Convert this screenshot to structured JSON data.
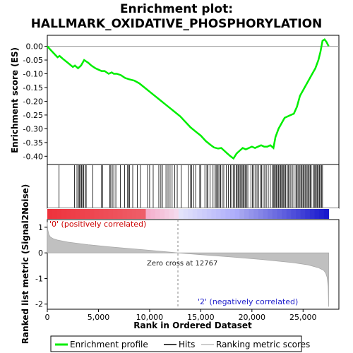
{
  "chart_data": {
    "type": "line",
    "title_line1": "Enrichment plot:",
    "title_line2": "HALLMARK_OXIDATIVE_PHOSPHORYLATION",
    "top_panel": {
      "ylabel": "Enrichment score (ES)",
      "ylim": [
        -0.43,
        0.04
      ],
      "yticks": [
        "0.00",
        "-0.05",
        "-0.10",
        "-0.15",
        "-0.20",
        "-0.25",
        "-0.30",
        "-0.35",
        "-0.40"
      ],
      "ytick_values": [
        0.0,
        -0.05,
        -0.1,
        -0.15,
        -0.2,
        -0.25,
        -0.3,
        -0.35,
        -0.4
      ],
      "line_color": "#00ee00",
      "series": [
        {
          "x": [
            0,
            500,
            1000,
            1200,
            1500,
            2000,
            2500,
            2700,
            3000,
            3300,
            3600,
            3800,
            4000,
            4300,
            4700,
            5000,
            5300,
            5600,
            6000,
            6300,
            6500,
            6800,
            7200,
            7600,
            8000,
            8500,
            9000,
            9500,
            10000,
            10500,
            11000,
            11500,
            12000,
            12500,
            13000,
            13500,
            14000,
            14500,
            15000,
            15500,
            16000,
            16300,
            16700,
            17000,
            17300,
            17600,
            17900,
            18200,
            18500,
            18800,
            19100,
            19400,
            19700,
            20000,
            20300,
            20600,
            20900,
            21200,
            21500,
            21800,
            22100,
            22300,
            22600,
            22900,
            23200,
            23500,
            23800,
            24100,
            24400,
            24700,
            25000,
            25300,
            25600,
            25900,
            26200,
            26500,
            26700,
            26900,
            27100,
            27300,
            27500
          ],
          "y": [
            0.0,
            -0.02,
            -0.04,
            -0.035,
            -0.045,
            -0.06,
            -0.075,
            -0.07,
            -0.08,
            -0.07,
            -0.05,
            -0.055,
            -0.06,
            -0.07,
            -0.08,
            -0.085,
            -0.09,
            -0.09,
            -0.1,
            -0.095,
            -0.1,
            -0.1,
            -0.105,
            -0.115,
            -0.12,
            -0.125,
            -0.135,
            -0.15,
            -0.165,
            -0.18,
            -0.195,
            -0.21,
            -0.225,
            -0.24,
            -0.255,
            -0.275,
            -0.295,
            -0.31,
            -0.325,
            -0.345,
            -0.36,
            -0.368,
            -0.372,
            -0.37,
            -0.38,
            -0.39,
            -0.4,
            -0.408,
            -0.39,
            -0.38,
            -0.37,
            -0.375,
            -0.37,
            -0.365,
            -0.37,
            -0.365,
            -0.36,
            -0.365,
            -0.365,
            -0.36,
            -0.37,
            -0.33,
            -0.3,
            -0.28,
            -0.26,
            -0.255,
            -0.25,
            -0.245,
            -0.22,
            -0.18,
            -0.16,
            -0.14,
            -0.12,
            -0.1,
            -0.08,
            -0.05,
            -0.02,
            0.02,
            0.025,
            0.015,
            0.0
          ]
        }
      ]
    },
    "hits": [
      1150,
      2650,
      2900,
      3050,
      3150,
      3250,
      3350,
      3450,
      3550,
      3700,
      3800,
      4450,
      5300,
      5400,
      6100,
      6200,
      6350,
      6500,
      6700,
      7150,
      7550,
      7850,
      7950,
      8050,
      8350,
      8800,
      9100,
      9800,
      10000,
      10350,
      10900,
      11100,
      11250,
      11600,
      11800,
      12000,
      12200,
      12450,
      12700,
      13100,
      13800,
      14000,
      14100,
      14300,
      14500,
      14900,
      15000,
      15400,
      15600,
      15700,
      15900,
      16200,
      16400,
      16500,
      16600,
      16700,
      16850,
      16950,
      17100,
      17250,
      17500,
      17700,
      17900,
      18050,
      18200,
      18300,
      18450,
      18550,
      18650,
      18750,
      18850,
      18950,
      19050,
      19150,
      19250,
      19350,
      19500,
      19600,
      19900,
      20050,
      20200,
      20350,
      20500,
      20650,
      20800,
      20950,
      21100,
      21250,
      21400,
      21600,
      21800,
      22000,
      22100,
      22200,
      22300,
      22400,
      22500,
      22600,
      22700,
      22800,
      22900,
      23000,
      23100,
      23200,
      23300,
      23450,
      23550,
      23650,
      23800,
      23950,
      24100,
      24300,
      24400,
      24500,
      24600,
      24700,
      24800,
      24900,
      25000,
      25100,
      25200,
      25300,
      25400,
      25500,
      25600,
      25700,
      25800,
      26000,
      26100,
      26200,
      26300,
      26400,
      26500,
      26600,
      26700,
      26800,
      26900
    ],
    "xlabel": "Rank in Ordered Dataset",
    "xlim": [
      0,
      28500
    ],
    "xticks": [
      "0",
      "5,000",
      "10,000",
      "15,000",
      "20,000",
      "25,000"
    ],
    "xtick_values": [
      0,
      5000,
      10000,
      15000,
      20000,
      25000
    ],
    "bottom_panel": {
      "ylabel": "Ranked list metric (Signal2Noise)",
      "ylim": [
        -2.2,
        1.3
      ],
      "yticks": [
        "1",
        "0",
        "-1",
        "-2"
      ],
      "ytick_values": [
        1,
        0,
        -1,
        -2
      ],
      "zero_cross_label": "Zero cross at 12767",
      "zero_cross": 12767,
      "positive_label": "'0' (positively correlated)",
      "negative_label": "'2' (negatively correlated)",
      "metric_x": [
        0,
        50,
        150,
        300,
        600,
        1000,
        2000,
        4000,
        6000,
        8000,
        10000,
        12767,
        15000,
        18000,
        21000,
        24000,
        25500,
        26500,
        27000,
        27200,
        27350,
        27450,
        27500
      ],
      "metric_y": [
        1.2,
        0.9,
        0.72,
        0.62,
        0.55,
        0.5,
        0.42,
        0.32,
        0.24,
        0.17,
        0.1,
        0.0,
        -0.07,
        -0.16,
        -0.26,
        -0.38,
        -0.47,
        -0.58,
        -0.68,
        -0.78,
        -0.95,
        -1.3,
        -2.1
      ]
    },
    "legend": [
      {
        "label": "Enrichment profile",
        "color": "#00ee00"
      },
      {
        "label": "Hits",
        "color": "#000000"
      },
      {
        "label": "Ranking metric scores",
        "color": "#bbbbbb"
      }
    ]
  }
}
